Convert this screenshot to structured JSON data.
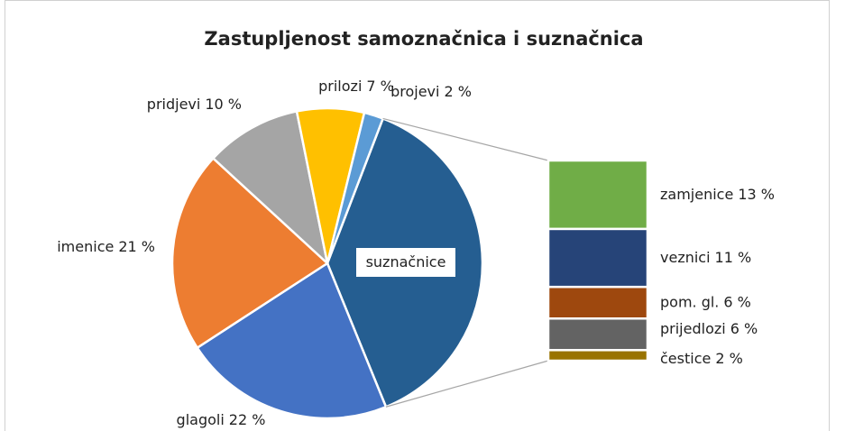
{
  "chart_data": {
    "type": "pie",
    "title": "Zastupljenost samoznačnica i suznačnica",
    "categories": [
      "suznačnice",
      "glagoli",
      "imenice",
      "pridjevi",
      "prilozi",
      "brojevi"
    ],
    "values": [
      38,
      22,
      21,
      10,
      7,
      2
    ],
    "value_labels": [
      null,
      "22 %",
      "21 %",
      "10 %",
      "7 %",
      "2 %"
    ],
    "colors": [
      "#255e91",
      "#4472c4",
      "#ed7d31",
      "#a5a5a5",
      "#ffc000",
      "#5b9bd5"
    ],
    "breakdown": {
      "categories": [
        "zamjenice",
        "veznici",
        "pom. gl.",
        "prijedlozi",
        "čestice"
      ],
      "values": [
        13,
        11,
        6,
        6,
        2
      ],
      "value_labels": [
        "13 %",
        "11 %",
        "6 %",
        "6 %",
        "2 %"
      ],
      "colors": [
        "#70ad47",
        "#264478",
        "#9e480e",
        "#636363",
        "#997300"
      ]
    }
  }
}
